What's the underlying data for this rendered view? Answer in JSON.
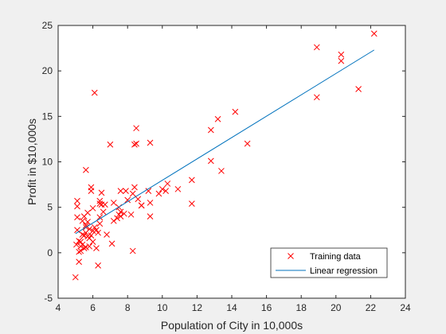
{
  "chart_data": {
    "type": "scatter",
    "title": "",
    "xlabel": "Population of City in 10,000s",
    "ylabel": "Profit in $10,000s",
    "xlim": [
      4,
      24
    ],
    "ylim": [
      -5,
      25
    ],
    "xticks": [
      4,
      6,
      8,
      10,
      12,
      14,
      16,
      18,
      20,
      22,
      24
    ],
    "yticks": [
      -5,
      0,
      5,
      10,
      15,
      20,
      25
    ],
    "grid": false,
    "legend_position": "bottom-right",
    "series": [
      {
        "name": "Training data",
        "kind": "scatter",
        "marker": "x",
        "color": "#ff0000",
        "points": [
          [
            22.2,
            24.1
          ],
          [
            20.3,
            21.8
          ],
          [
            20.3,
            21.1
          ],
          [
            18.9,
            22.6
          ],
          [
            18.9,
            17.1
          ],
          [
            21.3,
            18.0
          ],
          [
            14.9,
            12.0
          ],
          [
            14.2,
            15.5
          ],
          [
            13.2,
            14.7
          ],
          [
            12.8,
            13.5
          ],
          [
            12.8,
            10.1
          ],
          [
            13.4,
            9.0
          ],
          [
            11.7,
            8.0
          ],
          [
            11.7,
            5.4
          ],
          [
            10.9,
            7.0
          ],
          [
            10.3,
            7.6
          ],
          [
            10.2,
            6.8
          ],
          [
            10.0,
            7.0
          ],
          [
            9.8,
            6.5
          ],
          [
            9.3,
            12.1
          ],
          [
            9.2,
            6.8
          ],
          [
            9.3,
            4.0
          ],
          [
            9.3,
            5.5
          ],
          [
            8.8,
            5.2
          ],
          [
            8.5,
            13.7
          ],
          [
            8.5,
            12.0
          ],
          [
            8.4,
            11.9
          ],
          [
            8.6,
            5.9
          ],
          [
            8.4,
            7.2
          ],
          [
            8.3,
            6.5
          ],
          [
            8.2,
            4.2
          ],
          [
            8.3,
            0.2
          ],
          [
            7.9,
            6.8
          ],
          [
            7.8,
            4.3
          ],
          [
            7.6,
            6.8
          ],
          [
            7.6,
            4.5
          ],
          [
            7.5,
            4.2
          ],
          [
            7.4,
            3.8
          ],
          [
            7.2,
            5.5
          ],
          [
            7.0,
            11.9
          ],
          [
            7.1,
            1.0
          ],
          [
            6.7,
            5.3
          ],
          [
            6.6,
            4.5
          ],
          [
            6.5,
            6.6
          ],
          [
            6.4,
            5.4
          ],
          [
            6.4,
            5.7
          ],
          [
            6.3,
            2.2
          ],
          [
            6.3,
            -1.4
          ],
          [
            6.1,
            17.6
          ],
          [
            6.1,
            2.8
          ],
          [
            6.0,
            4.9
          ],
          [
            6.0,
            1.2
          ],
          [
            5.9,
            7.2
          ],
          [
            5.9,
            6.8
          ],
          [
            5.8,
            1.6
          ],
          [
            5.8,
            0.7
          ],
          [
            5.7,
            3.4
          ],
          [
            5.7,
            1.8
          ],
          [
            5.6,
            9.1
          ],
          [
            5.6,
            3.0
          ],
          [
            5.6,
            2.8
          ],
          [
            5.5,
            1.9
          ],
          [
            5.5,
            0.5
          ],
          [
            5.4,
            3.5
          ],
          [
            5.4,
            2.0
          ],
          [
            5.3,
            1.2
          ],
          [
            5.3,
            0.7
          ],
          [
            5.2,
            0.1
          ],
          [
            5.2,
            -1.0
          ],
          [
            5.1,
            5.7
          ],
          [
            5.1,
            5.1
          ],
          [
            5.1,
            3.9
          ],
          [
            5.1,
            2.5
          ],
          [
            5.05,
            0.9
          ],
          [
            5.0,
            -2.7
          ],
          [
            5.2,
            1.3
          ],
          [
            5.4,
            0.9
          ],
          [
            5.7,
            4.4
          ],
          [
            5.9,
            1.9
          ],
          [
            6.2,
            2.5
          ],
          [
            6.4,
            3.2
          ],
          [
            6.8,
            2.0
          ],
          [
            7.2,
            3.5
          ],
          [
            7.6,
            4.0
          ],
          [
            8.0,
            5.8
          ],
          [
            8.8,
            5.2
          ],
          [
            5.3,
            0.2
          ],
          [
            5.6,
            0.6
          ],
          [
            5.5,
            4.0
          ],
          [
            5.8,
            2.6
          ],
          [
            6.0,
            2.4
          ],
          [
            6.2,
            0.5
          ],
          [
            6.5,
            5.3
          ],
          [
            5.6,
            2.2
          ],
          [
            6.4,
            3.9
          ],
          [
            7.5,
            5.0
          ]
        ]
      },
      {
        "name": "Linear regression",
        "kind": "line",
        "color": "#0072bd",
        "points": [
          [
            5.0,
            2.1
          ],
          [
            22.2,
            22.3
          ]
        ]
      }
    ]
  }
}
